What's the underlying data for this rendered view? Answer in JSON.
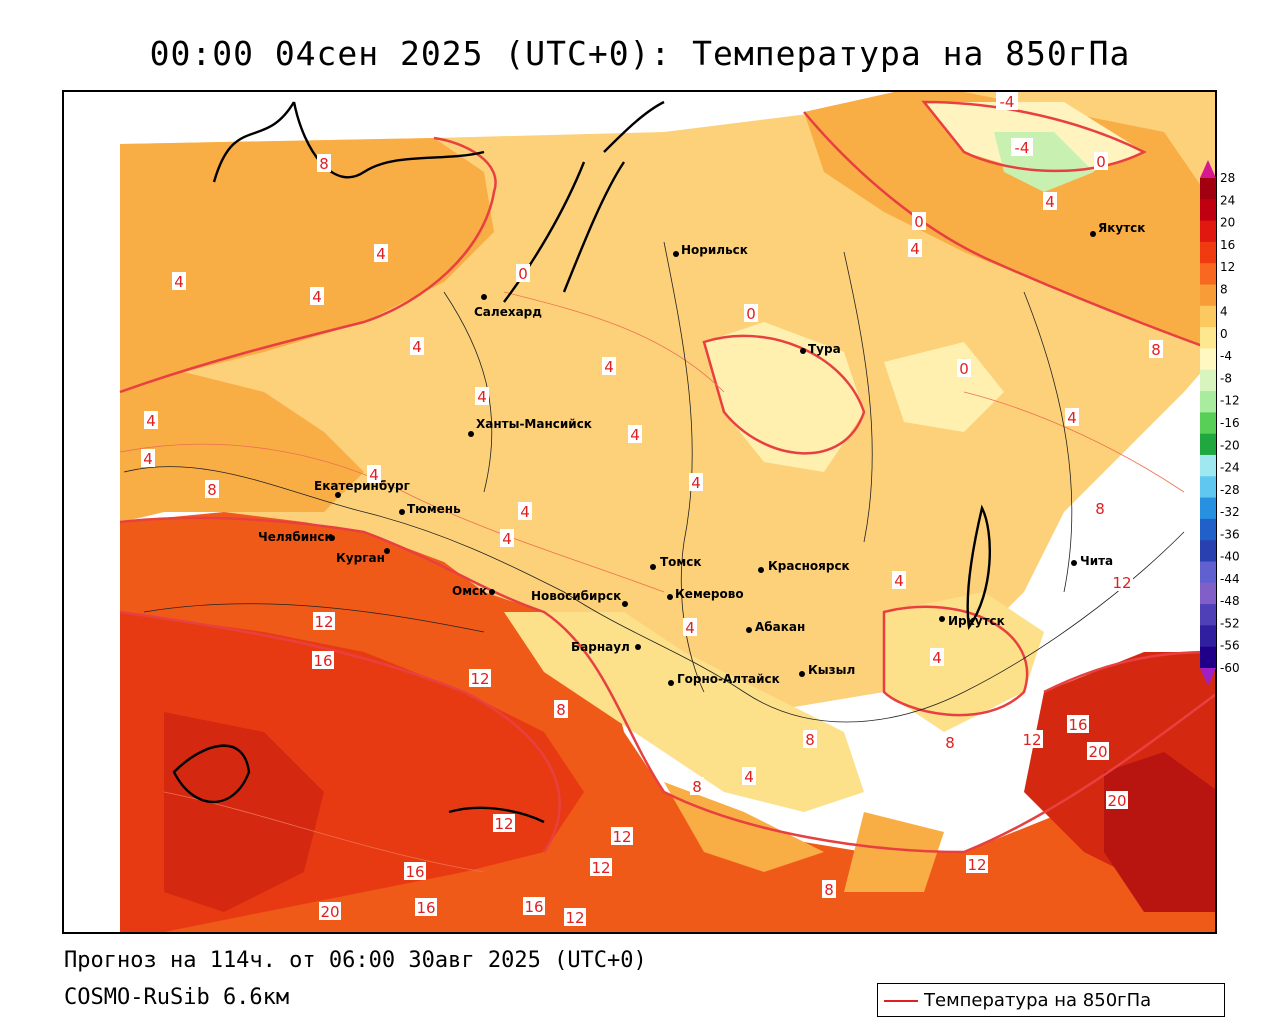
{
  "title": "00:00 04сен 2025 (UTC+0): Температура на 850гПа",
  "forecast": "Прогноз на 114ч. от 06:00 30авг 2025 (UTC+0)",
  "model": "COSMO-RuSib 6.6км",
  "legend": {
    "label": "Температура на 850гПа",
    "line_color": "#e02020"
  },
  "colorbar": {
    "ticks": [
      "28",
      "24",
      "20",
      "16",
      "12",
      "8",
      "4",
      "0",
      "-4",
      "-8",
      "-12",
      "-16",
      "-20",
      "-24",
      "-28",
      "-32",
      "-36",
      "-40",
      "-44",
      "-48",
      "-52",
      "-56",
      "-60"
    ],
    "colors": [
      "#a00010",
      "#c00010",
      "#e01810",
      "#f03a10",
      "#f86820",
      "#f89c38",
      "#fcc860",
      "#fde890",
      "#fff8c0",
      "#d8f5c0",
      "#a8eca0",
      "#58d058",
      "#20a840",
      "#a0e8f0",
      "#60c8f0",
      "#2890e0",
      "#2060c8",
      "#2840b0",
      "#6060d0",
      "#8060c8",
      "#5040b8",
      "#3020a0",
      "#200088"
    ],
    "top_arrow_color": "#d81890",
    "bottom_arrow_color": "#a020c8"
  },
  "cities": [
    {
      "name": "Якутск"
    },
    {
      "name": "Норильск"
    },
    {
      "name": "Салехард"
    },
    {
      "name": "Тура"
    },
    {
      "name": "Ханты-Мансийск"
    },
    {
      "name": "Екатеринбург"
    },
    {
      "name": "Тюмень"
    },
    {
      "name": "Челябинск"
    },
    {
      "name": "Курган"
    },
    {
      "name": "Омск"
    },
    {
      "name": "Новосибирск"
    },
    {
      "name": "Томск"
    },
    {
      "name": "Кемерово"
    },
    {
      "name": "Красноярск"
    },
    {
      "name": "Абакан"
    },
    {
      "name": "Барнаул"
    },
    {
      "name": "Горно-Алтайск"
    },
    {
      "name": "Кызыл"
    },
    {
      "name": "Иркутск"
    },
    {
      "name": "Чита"
    }
  ],
  "isotherm_labels": [
    "-4",
    "-4",
    "0",
    "4",
    "0",
    "4",
    "8",
    "4",
    "0",
    "4",
    "4",
    "4",
    "0",
    "0",
    "4",
    "4",
    "4",
    "8",
    "4",
    "4",
    "4",
    "8",
    "4",
    "8",
    "4",
    "4",
    "12",
    "12",
    "16",
    "12",
    "8",
    "4",
    "4",
    "4",
    "4",
    "8",
    "12",
    "16",
    "20",
    "8",
    "4",
    "8",
    "12",
    "12",
    "12",
    "16",
    "16",
    "20",
    "16",
    "12",
    "8",
    "20",
    "12"
  ]
}
